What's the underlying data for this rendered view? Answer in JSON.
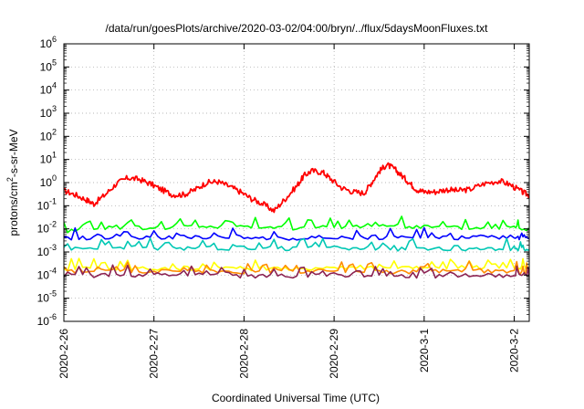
{
  "chart_data": {
    "type": "line",
    "title": "/data/run/goesPlots/archive/2020-03-02/04:00/bryn/../flux/5daysMoonFluxes.txt",
    "xlabel": "Coordinated Universal Time (UTC)",
    "ylabel_parts": {
      "pre": "protons/cm",
      "sup": "2",
      "post": "-s-sr-MeV"
    },
    "y_scale": "log",
    "ylim": [
      1e-06,
      1000000.0
    ],
    "y_ticks": [
      {
        "value": 1e-06,
        "base": "10",
        "exp": "-6"
      },
      {
        "value": 1e-05,
        "base": "10",
        "exp": "-5"
      },
      {
        "value": 0.0001,
        "base": "10",
        "exp": "-4"
      },
      {
        "value": 0.001,
        "base": "10",
        "exp": "-3"
      },
      {
        "value": 0.01,
        "base": "10",
        "exp": "-2"
      },
      {
        "value": 0.1,
        "base": "10",
        "exp": "-1"
      },
      {
        "value": 1.0,
        "base": "10",
        "exp": "0"
      },
      {
        "value": 10.0,
        "base": "10",
        "exp": "1"
      },
      {
        "value": 100.0,
        "base": "10",
        "exp": "2"
      },
      {
        "value": 1000.0,
        "base": "10",
        "exp": "3"
      },
      {
        "value": 10000.0,
        "base": "10",
        "exp": "4"
      },
      {
        "value": 100000.0,
        "base": "10",
        "exp": "5"
      },
      {
        "value": 1000000.0,
        "base": "10",
        "exp": "6"
      }
    ],
    "xlim": [
      "2020-02-26T00:00",
      "2020-03-02T04:00"
    ],
    "x_ticks": [
      {
        "value": "2020-02-26T00:00",
        "label": "2020-2-26"
      },
      {
        "value": "2020-02-27T00:00",
        "label": "2020-2-27"
      },
      {
        "value": "2020-02-28T00:00",
        "label": "2020-2-28"
      },
      {
        "value": "2020-02-29T00:00",
        "label": "2020-2-29"
      },
      {
        "value": "2020-03-01T00:00",
        "label": "2020-3-1"
      },
      {
        "value": "2020-03-02T00:00",
        "label": "2020-3-2"
      }
    ],
    "grid": true,
    "grid_style": "dotted",
    "series": [
      {
        "color": "#ff0000",
        "points": [
          [
            "2020-02-26T00:00",
            0.45
          ],
          [
            "2020-02-26T03:00",
            0.3
          ],
          [
            "2020-02-26T06:00",
            0.18
          ],
          [
            "2020-02-26T08:00",
            0.12
          ],
          [
            "2020-02-26T11:00",
            0.3
          ],
          [
            "2020-02-26T14:00",
            0.9
          ],
          [
            "2020-02-26T17:00",
            1.6
          ],
          [
            "2020-02-26T20:00",
            1.4
          ],
          [
            "2020-02-26T23:00",
            0.9
          ],
          [
            "2020-02-27T02:00",
            0.5
          ],
          [
            "2020-02-27T05:00",
            0.3
          ],
          [
            "2020-02-27T08:00",
            0.3
          ],
          [
            "2020-02-27T11:00",
            0.5
          ],
          [
            "2020-02-27T14:00",
            1.0
          ],
          [
            "2020-02-27T17:00",
            1.1
          ],
          [
            "2020-02-27T20:00",
            0.7
          ],
          [
            "2020-02-27T23:00",
            0.4
          ],
          [
            "2020-02-28T02:00",
            0.2
          ],
          [
            "2020-02-28T05:00",
            0.12
          ],
          [
            "2020-02-28T08:00",
            0.06
          ],
          [
            "2020-02-28T11:00",
            0.2
          ],
          [
            "2020-02-28T14:00",
            0.7
          ],
          [
            "2020-02-28T16:00",
            2.0
          ],
          [
            "2020-02-28T18:00",
            3.2
          ],
          [
            "2020-02-28T21:00",
            2.8
          ],
          [
            "2020-02-28T23:00",
            1.5
          ],
          [
            "2020-02-29T02:00",
            0.6
          ],
          [
            "2020-02-29T05:00",
            0.4
          ],
          [
            "2020-02-29T08:00",
            0.35
          ],
          [
            "2020-02-29T10:00",
            1.0
          ],
          [
            "2020-02-29T12:00",
            3.0
          ],
          [
            "2020-02-29T14:00",
            6.0
          ],
          [
            "2020-02-29T16:00",
            4.0
          ],
          [
            "2020-02-29T18:00",
            2.0
          ],
          [
            "2020-02-29T20:00",
            1.0
          ],
          [
            "2020-02-29T22:00",
            0.5
          ],
          [
            "2020-03-01T00:00",
            0.4
          ],
          [
            "2020-03-01T03:00",
            0.4
          ],
          [
            "2020-03-01T06:00",
            0.5
          ],
          [
            "2020-03-01T09:00",
            0.45
          ],
          [
            "2020-03-01T12:00",
            0.5
          ],
          [
            "2020-03-01T16:00",
            0.9
          ],
          [
            "2020-03-01T20:00",
            1.2
          ],
          [
            "2020-03-01T23:00",
            0.8
          ],
          [
            "2020-03-02T02:00",
            0.4
          ],
          [
            "2020-03-02T04:00",
            0.28
          ]
        ]
      },
      {
        "color": "#00ff00",
        "points": [
          [
            "2020-02-26T00:00",
            0.008
          ],
          [
            "2020-02-26T12:00",
            0.012
          ],
          [
            "2020-02-27T00:00",
            0.011
          ],
          [
            "2020-02-27T12:00",
            0.013
          ],
          [
            "2020-02-28T00:00",
            0.012
          ],
          [
            "2020-02-28T12:00",
            0.011
          ],
          [
            "2020-02-29T00:00",
            0.012
          ],
          [
            "2020-02-29T12:00",
            0.014
          ],
          [
            "2020-03-01T00:00",
            0.012
          ],
          [
            "2020-03-01T12:00",
            0.011
          ],
          [
            "2020-03-02T00:00",
            0.012
          ],
          [
            "2020-03-02T04:00",
            0.01
          ]
        ]
      },
      {
        "color": "#0000ff",
        "points": [
          [
            "2020-02-26T00:00",
            0.004
          ],
          [
            "2020-02-26T12:00",
            0.0042
          ],
          [
            "2020-02-27T00:00",
            0.004
          ],
          [
            "2020-02-27T12:00",
            0.0045
          ],
          [
            "2020-02-28T00:00",
            0.0042
          ],
          [
            "2020-02-28T12:00",
            0.004
          ],
          [
            "2020-02-29T00:00",
            0.0043
          ],
          [
            "2020-02-29T12:00",
            0.0042
          ],
          [
            "2020-03-01T00:00",
            0.004
          ],
          [
            "2020-03-01T12:00",
            0.0042
          ],
          [
            "2020-03-02T00:00",
            0.0041
          ],
          [
            "2020-03-02T04:00",
            0.004
          ]
        ]
      },
      {
        "color": "#00c8b4",
        "points": [
          [
            "2020-02-26T00:00",
            0.0015
          ],
          [
            "2020-02-26T12:00",
            0.0014
          ],
          [
            "2020-02-27T00:00",
            0.0015
          ],
          [
            "2020-02-27T12:00",
            0.0014
          ],
          [
            "2020-02-28T00:00",
            0.0015
          ],
          [
            "2020-02-28T12:00",
            0.0014
          ],
          [
            "2020-02-29T00:00",
            0.0015
          ],
          [
            "2020-02-29T12:00",
            0.0014
          ],
          [
            "2020-03-01T00:00",
            0.0013
          ],
          [
            "2020-03-01T12:00",
            0.0014
          ],
          [
            "2020-03-02T00:00",
            0.0014
          ],
          [
            "2020-03-02T04:00",
            0.0013
          ]
        ]
      },
      {
        "color": "#ffff00",
        "points": [
          [
            "2020-02-26T00:00",
            0.00018
          ],
          [
            "2020-02-26T12:00",
            0.0002
          ],
          [
            "2020-02-27T00:00",
            0.00019
          ],
          [
            "2020-02-27T12:00",
            0.0002
          ],
          [
            "2020-02-28T00:00",
            0.00019
          ],
          [
            "2020-02-28T12:00",
            0.00019
          ],
          [
            "2020-02-29T00:00",
            0.0002
          ],
          [
            "2020-02-29T12:00",
            0.00019
          ],
          [
            "2020-03-01T00:00",
            0.0002
          ],
          [
            "2020-03-01T12:00",
            0.00019
          ],
          [
            "2020-03-02T00:00",
            0.0002
          ],
          [
            "2020-03-02T04:00",
            0.00018
          ]
        ]
      },
      {
        "color": "#ff8c00",
        "points": [
          [
            "2020-02-26T00:00",
            0.00014
          ],
          [
            "2020-02-26T12:00",
            0.00015
          ],
          [
            "2020-02-27T00:00",
            0.00014
          ],
          [
            "2020-02-27T12:00",
            0.00015
          ],
          [
            "2020-02-28T00:00",
            0.00014
          ],
          [
            "2020-02-28T12:00",
            0.00014
          ],
          [
            "2020-02-29T00:00",
            0.00015
          ],
          [
            "2020-02-29T12:00",
            0.00014
          ],
          [
            "2020-03-01T00:00",
            0.00014
          ],
          [
            "2020-03-01T12:00",
            0.00015
          ],
          [
            "2020-03-02T00:00",
            0.00014
          ],
          [
            "2020-03-02T04:00",
            0.00013
          ]
        ]
      },
      {
        "color": "#8b2252",
        "points": [
          [
            "2020-02-26T00:00",
            9e-05
          ],
          [
            "2020-02-26T12:00",
            0.0001
          ],
          [
            "2020-02-27T00:00",
            9e-05
          ],
          [
            "2020-02-27T12:00",
            0.0001
          ],
          [
            "2020-02-28T00:00",
            9e-05
          ],
          [
            "2020-02-28T12:00",
            9e-05
          ],
          [
            "2020-02-29T00:00",
            0.0001
          ],
          [
            "2020-02-29T12:00",
            9e-05
          ],
          [
            "2020-03-01T00:00",
            9e-05
          ],
          [
            "2020-03-01T12:00",
            0.0001
          ],
          [
            "2020-03-02T00:00",
            9e-05
          ],
          [
            "2020-03-02T04:00",
            9e-05
          ]
        ]
      }
    ]
  }
}
